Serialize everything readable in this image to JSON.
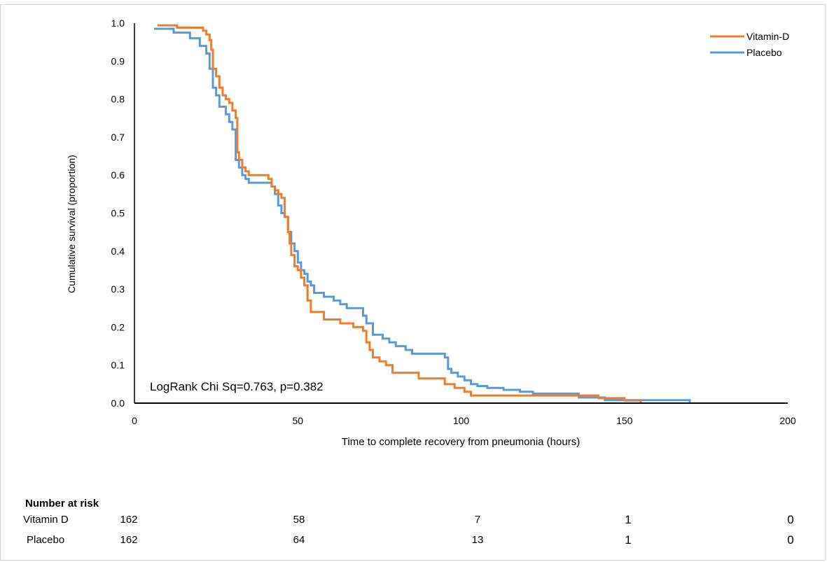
{
  "chart_data": {
    "type": "line",
    "subtype": "kaplan-meier-step",
    "xlabel": "Time to complete recovery from pneumonia (hours)",
    "ylabel": "Cumulative survival (proportion)",
    "xlim": [
      0,
      200
    ],
    "ylim": [
      0.0,
      1.0
    ],
    "x_ticks": [
      "0",
      "50",
      "100",
      "150",
      "200"
    ],
    "y_ticks": [
      "0.0",
      "0.1",
      "0.2",
      "0.3",
      "0.4",
      "0.5",
      "0.6",
      "0.7",
      "0.8",
      "0.9",
      "1.0"
    ],
    "x_tick_values": [
      0,
      50,
      100,
      150,
      200
    ],
    "y_tick_values": [
      0,
      0.1,
      0.2,
      0.3,
      0.4,
      0.5,
      0.6,
      0.7,
      0.8,
      0.9,
      1.0
    ],
    "grid": false,
    "legend_position": "top-right",
    "annotation": "LogRank Chi Sq=0.763, p=0.382",
    "series": [
      {
        "name": "Vitamin-D",
        "color": "#ed7d31",
        "points": [
          [
            7,
            0.994
          ],
          [
            13,
            0.988
          ],
          [
            21,
            0.98
          ],
          [
            22,
            0.97
          ],
          [
            23,
            0.955
          ],
          [
            23.5,
            0.93
          ],
          [
            24,
            0.88
          ],
          [
            25,
            0.86
          ],
          [
            26,
            0.83
          ],
          [
            27,
            0.81
          ],
          [
            28,
            0.8
          ],
          [
            29,
            0.79
          ],
          [
            30,
            0.77
          ],
          [
            31,
            0.75
          ],
          [
            31.5,
            0.66
          ],
          [
            32,
            0.64
          ],
          [
            33,
            0.62
          ],
          [
            34,
            0.61
          ],
          [
            35,
            0.6
          ],
          [
            41,
            0.59
          ],
          [
            42,
            0.57
          ],
          [
            43,
            0.56
          ],
          [
            44,
            0.55
          ],
          [
            45,
            0.54
          ],
          [
            46,
            0.49
          ],
          [
            47,
            0.45
          ],
          [
            47.5,
            0.42
          ],
          [
            48,
            0.39
          ],
          [
            49,
            0.36
          ],
          [
            50,
            0.35
          ],
          [
            51,
            0.33
          ],
          [
            52,
            0.31
          ],
          [
            53,
            0.27
          ],
          [
            54,
            0.24
          ],
          [
            58,
            0.22
          ],
          [
            63,
            0.21
          ],
          [
            67,
            0.2
          ],
          [
            70,
            0.19
          ],
          [
            71,
            0.16
          ],
          [
            72,
            0.14
          ],
          [
            73,
            0.12
          ],
          [
            75,
            0.11
          ],
          [
            77,
            0.1
          ],
          [
            79,
            0.08
          ],
          [
            87,
            0.065
          ],
          [
            95,
            0.05
          ],
          [
            98,
            0.04
          ],
          [
            101,
            0.03
          ],
          [
            103,
            0.02
          ],
          [
            142,
            0.013
          ],
          [
            150,
            0.007
          ],
          [
            155,
            0.0
          ]
        ]
      },
      {
        "name": "Placebo",
        "color": "#5b9bd5",
        "points": [
          [
            6,
            0.985
          ],
          [
            12,
            0.975
          ],
          [
            17,
            0.96
          ],
          [
            20,
            0.94
          ],
          [
            22,
            0.92
          ],
          [
            23,
            0.88
          ],
          [
            24,
            0.83
          ],
          [
            25,
            0.81
          ],
          [
            26,
            0.78
          ],
          [
            28,
            0.76
          ],
          [
            29,
            0.74
          ],
          [
            30,
            0.72
          ],
          [
            31,
            0.64
          ],
          [
            32,
            0.62
          ],
          [
            33,
            0.6
          ],
          [
            34,
            0.59
          ],
          [
            35,
            0.58
          ],
          [
            42,
            0.57
          ],
          [
            43,
            0.55
          ],
          [
            44,
            0.52
          ],
          [
            45,
            0.5
          ],
          [
            46,
            0.49
          ],
          [
            47,
            0.45
          ],
          [
            48,
            0.42
          ],
          [
            49,
            0.4
          ],
          [
            50,
            0.37
          ],
          [
            51,
            0.35
          ],
          [
            52,
            0.34
          ],
          [
            53,
            0.32
          ],
          [
            54,
            0.31
          ],
          [
            55,
            0.29
          ],
          [
            58,
            0.28
          ],
          [
            61,
            0.27
          ],
          [
            63,
            0.26
          ],
          [
            65,
            0.25
          ],
          [
            70,
            0.23
          ],
          [
            71,
            0.21
          ],
          [
            73,
            0.18
          ],
          [
            76,
            0.17
          ],
          [
            78,
            0.16
          ],
          [
            80,
            0.15
          ],
          [
            83,
            0.14
          ],
          [
            85,
            0.13
          ],
          [
            95,
            0.12
          ],
          [
            96,
            0.09
          ],
          [
            97,
            0.08
          ],
          [
            99,
            0.07
          ],
          [
            101,
            0.06
          ],
          [
            103,
            0.05
          ],
          [
            105,
            0.045
          ],
          [
            108,
            0.04
          ],
          [
            113,
            0.035
          ],
          [
            118,
            0.03
          ],
          [
            122,
            0.025
          ],
          [
            136,
            0.015
          ],
          [
            144,
            0.008
          ],
          [
            170,
            0.0
          ]
        ]
      }
    ]
  },
  "risk_table": {
    "title": "Number at risk",
    "rows": [
      {
        "label": "Vitamin D",
        "values": [
          "162",
          "58",
          "7",
          "1",
          "0"
        ]
      },
      {
        "label": "Placebo",
        "values": [
          "162",
          "64",
          "13",
          "1",
          "0"
        ]
      }
    ]
  }
}
